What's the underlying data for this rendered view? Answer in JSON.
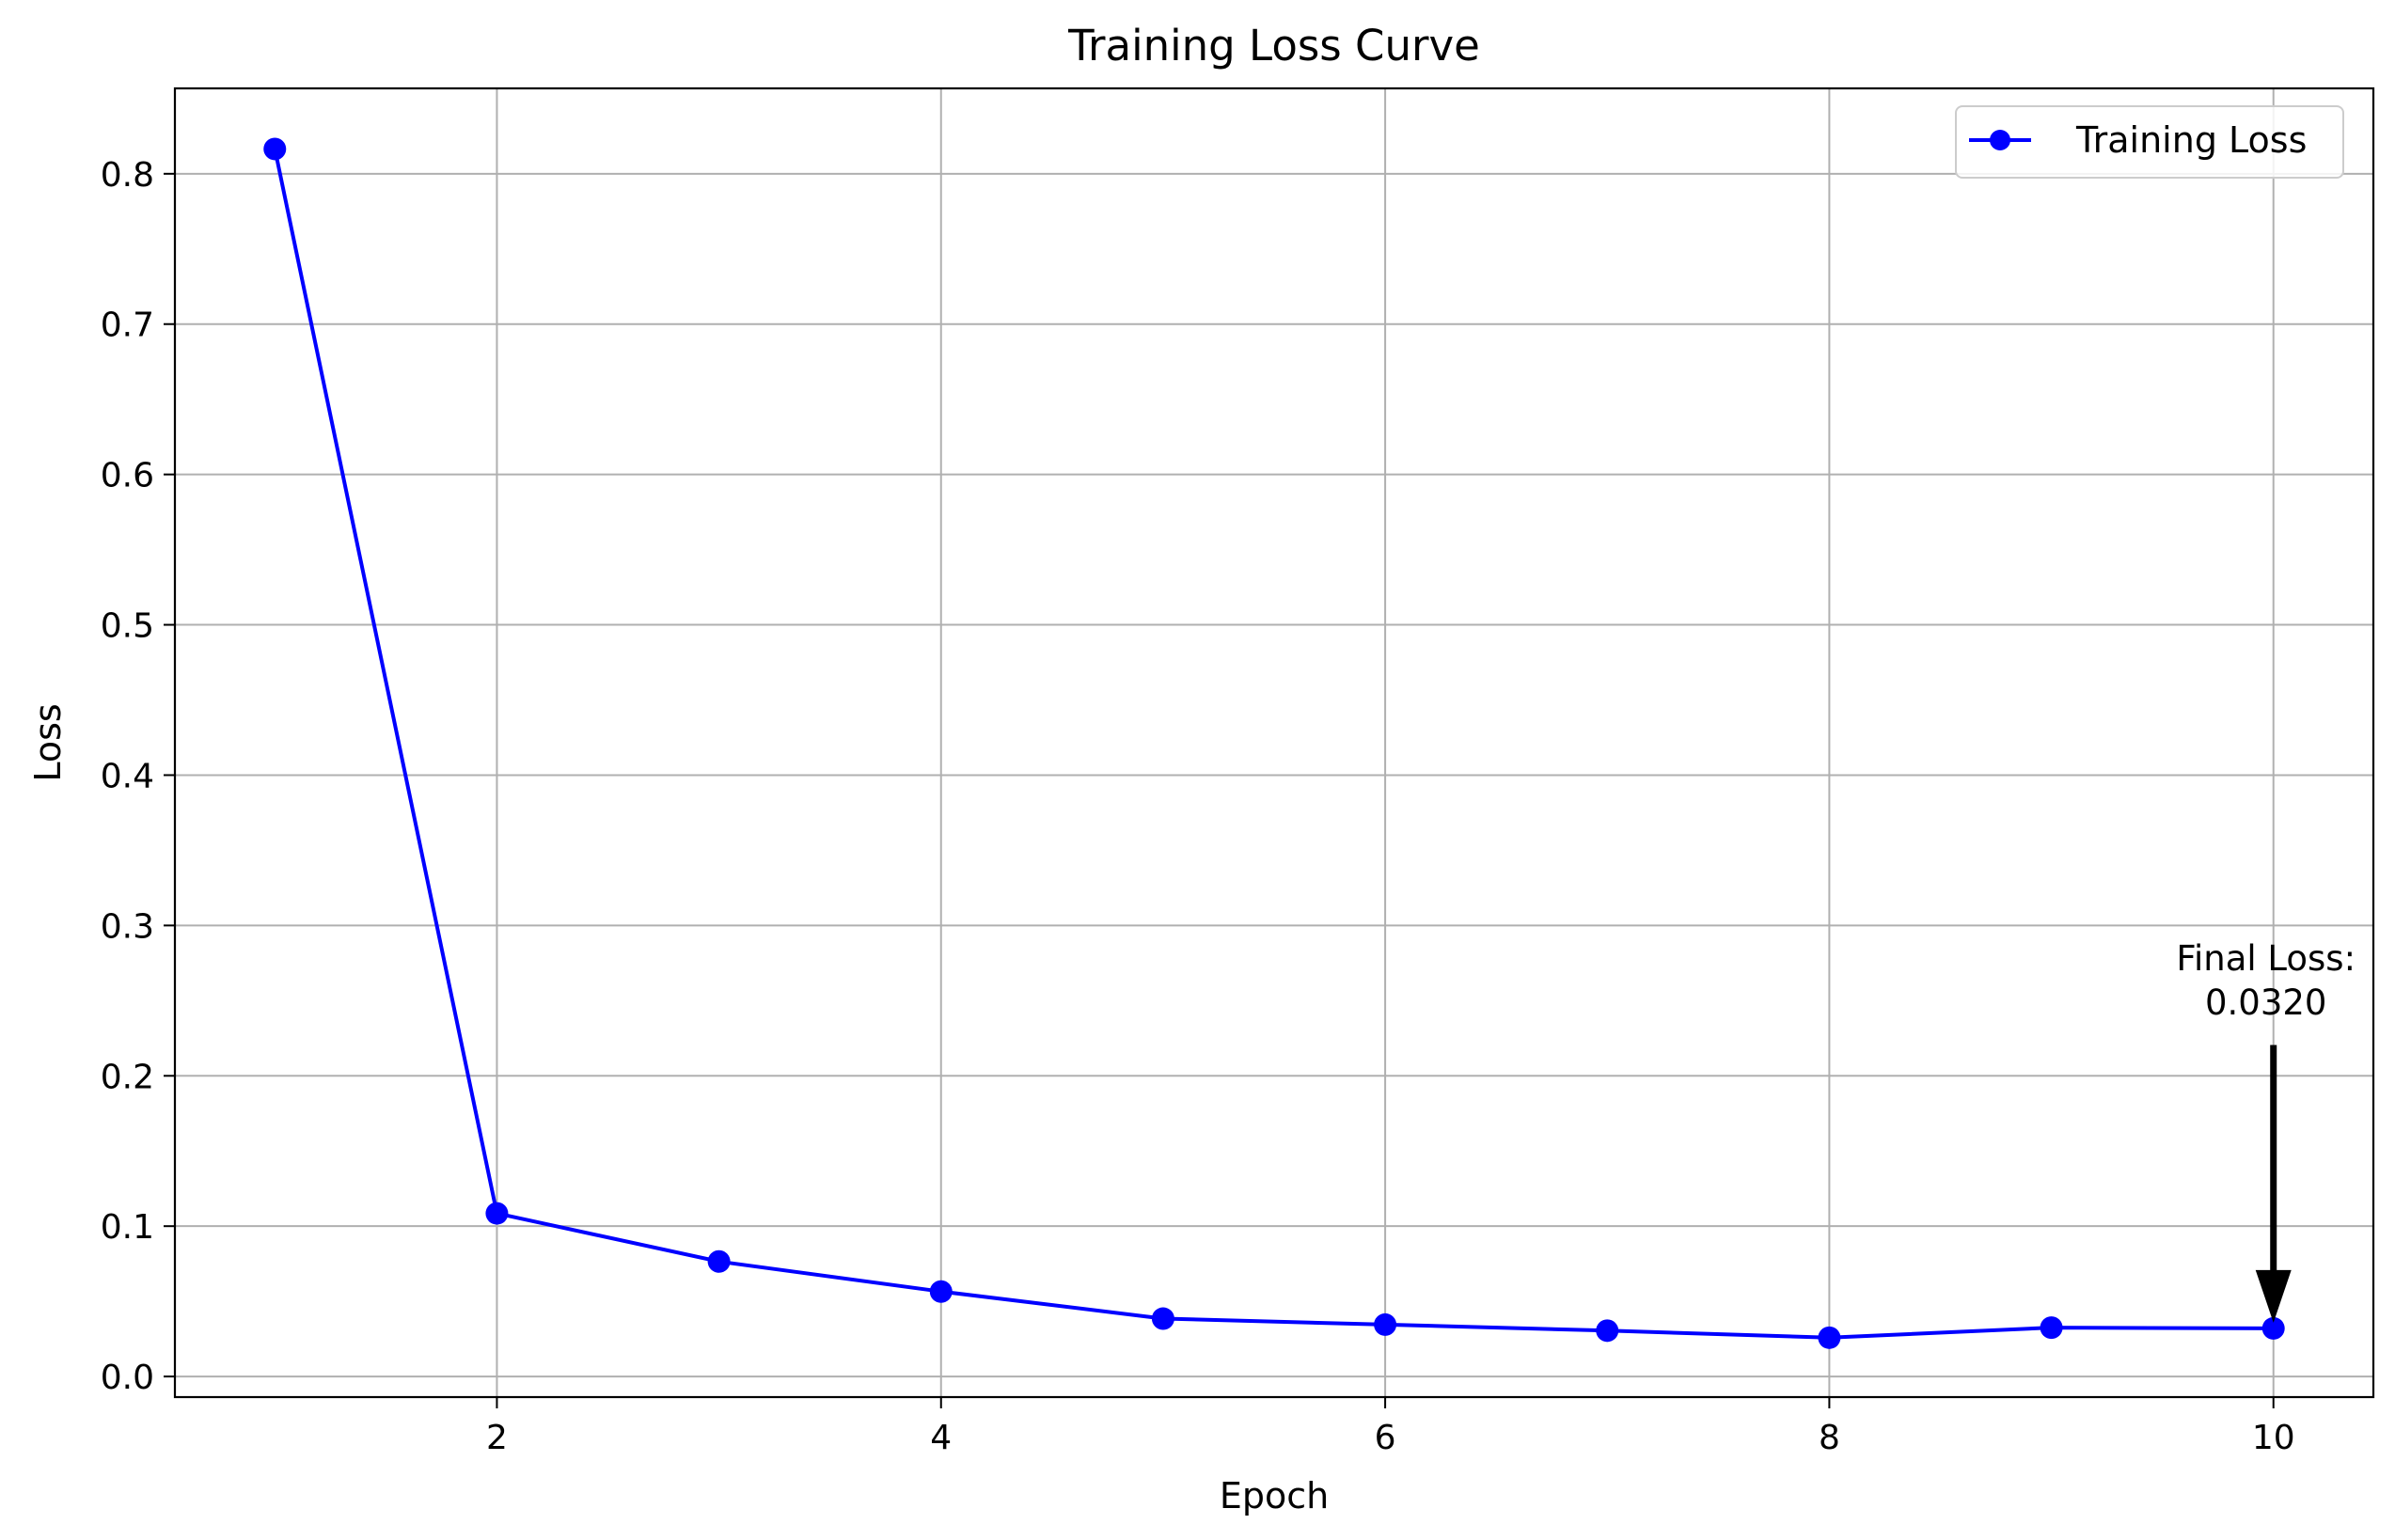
{
  "chart_data": {
    "type": "line",
    "title": "Training Loss Curve",
    "xlabel": "Epoch",
    "ylabel": "Loss",
    "xlim": [
      0.55,
      10.45
    ],
    "ylim": [
      -0.0137,
      0.8568
    ],
    "xticks": [
      2,
      4,
      6,
      8,
      10
    ],
    "yticks": [
      0.0,
      0.1,
      0.2,
      0.3,
      0.4,
      0.5,
      0.6,
      0.7,
      0.8
    ],
    "xtick_labels": [
      "2",
      "4",
      "6",
      "8",
      "10"
    ],
    "ytick_labels": [
      "0.0",
      "0.1",
      "0.2",
      "0.3",
      "0.4",
      "0.5",
      "0.6",
      "0.7",
      "0.8"
    ],
    "grid": true,
    "legend_position": "top-right",
    "series": [
      {
        "name": "Training Loss",
        "color": "#0000ff",
        "marker": "circle",
        "x": [
          1,
          2,
          3,
          4,
          5,
          6,
          7,
          8,
          9,
          10
        ],
        "y": [
          0.8165,
          0.1085,
          0.0765,
          0.0565,
          0.0385,
          0.0345,
          0.0305,
          0.0258,
          0.0325,
          0.032
        ]
      }
    ],
    "annotation": {
      "line1": "Final Loss:",
      "line2": "0.0320",
      "x": 10,
      "y": 0.032,
      "text_y": 0.218
    },
    "colors": {
      "grid": "#b0b0b0",
      "axis": "#000000",
      "arrow": "#000000"
    }
  }
}
